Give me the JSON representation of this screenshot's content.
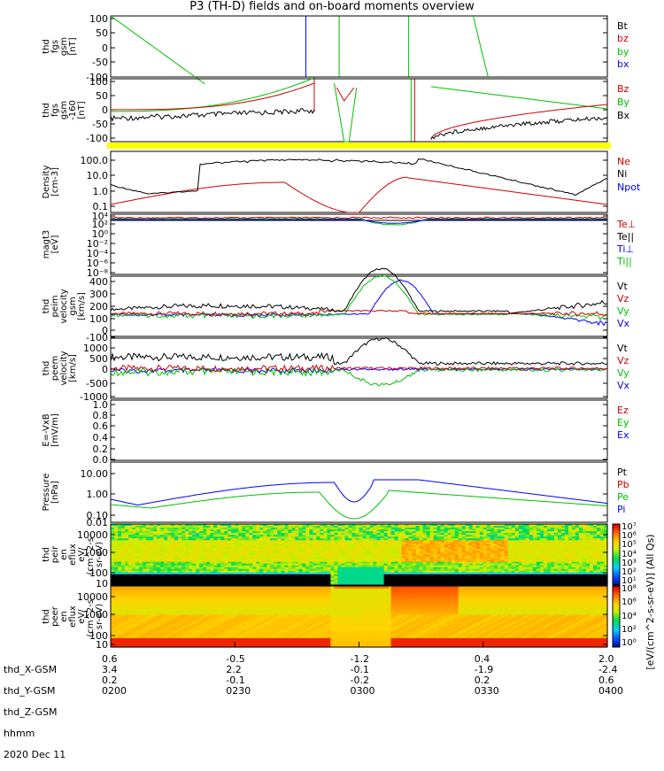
{
  "title": "P3 (TH-D) fields and on-board moments overview",
  "chart_data": [
    {
      "type": "line",
      "ylabel": "thd fgs gsm [nT]",
      "ylim": [
        -100,
        100
      ],
      "yticks": [
        "100",
        "50",
        "0",
        "-50",
        "-100"
      ],
      "series": [
        {
          "name": "Bt",
          "color": "#000000"
        },
        {
          "name": "bz",
          "color": "#d00000"
        },
        {
          "name": "by",
          "color": "#00c000"
        },
        {
          "name": "bx",
          "color": "#0000ff"
        }
      ]
    },
    {
      "type": "line",
      "ylabel": "thd fgs gsm -160 [nT]",
      "ylim": [
        -120,
        120
      ],
      "yticks": [
        "100",
        "50",
        "0",
        "-50",
        "-100"
      ],
      "series": [
        {
          "name": "Bz",
          "color": "#d00000"
        },
        {
          "name": "By",
          "color": "#00c000"
        },
        {
          "name": "Bx",
          "color": "#000000"
        }
      ]
    },
    {
      "type": "line",
      "ylabel": "Density [cm-3]",
      "scale": "log",
      "ylim": [
        0.1,
        200
      ],
      "yticks": [
        "100.0",
        "10.0",
        "1.0",
        "0.1"
      ],
      "series": [
        {
          "name": "Ne",
          "color": "#d00000"
        },
        {
          "name": "Ni",
          "color": "#000000"
        },
        {
          "name": "Npot",
          "color": "#0000ff"
        }
      ]
    },
    {
      "type": "line",
      "ylabel": "magt3 [eV]",
      "scale": "log",
      "yticks": [
        "10⁴",
        "10²",
        "10⁰",
        "10⁻²",
        "10⁻⁴",
        "10⁻⁶",
        "10⁻⁸"
      ],
      "series": [
        {
          "name": "Te⊥",
          "color": "#d00000"
        },
        {
          "name": "Te||",
          "color": "#000000"
        },
        {
          "name": "Ti⊥",
          "color": "#0000ff"
        },
        {
          "name": "Ti||",
          "color": "#00c000"
        }
      ]
    },
    {
      "type": "line",
      "ylabel": "thd peim velocity gsm [km/s]",
      "ylim": [
        -100,
        400
      ],
      "yticks": [
        "400",
        "300",
        "200",
        "100",
        "0",
        "-100"
      ],
      "series": [
        {
          "name": "Vt",
          "color": "#000000"
        },
        {
          "name": "Vz",
          "color": "#d00000"
        },
        {
          "name": "Vy",
          "color": "#00c000"
        },
        {
          "name": "Vx",
          "color": "#0000ff"
        }
      ]
    },
    {
      "type": "line",
      "ylabel": "thd peem velocity [km/s]",
      "ylim": [
        -1000,
        1000
      ],
      "yticks": [
        "1000",
        "500",
        "0",
        "-500",
        "-1000"
      ],
      "series": [
        {
          "name": "Vt",
          "color": "#000000"
        },
        {
          "name": "Vz",
          "color": "#d00000"
        },
        {
          "name": "Vy",
          "color": "#00c000"
        },
        {
          "name": "Vx",
          "color": "#0000ff"
        }
      ]
    },
    {
      "type": "line",
      "ylabel": "E=-VxB [mV/m]",
      "ylim": [
        0,
        1
      ],
      "yticks": [
        "1.0",
        "0.8",
        "0.6",
        "0.4",
        "0.2",
        "0.0"
      ],
      "series": [
        {
          "name": "Ez",
          "color": "#d00000"
        },
        {
          "name": "Ey",
          "color": "#00c000"
        },
        {
          "name": "Ex",
          "color": "#0000ff"
        }
      ]
    },
    {
      "type": "line",
      "ylabel": "Pressure [nPa]",
      "scale": "log",
      "ylim": [
        0.005,
        20
      ],
      "yticks": [
        "10.00",
        "1.00",
        "0.10",
        "0.01"
      ],
      "series": [
        {
          "name": "Pt",
          "color": "#000000"
        },
        {
          "name": "Pb",
          "color": "#d00000"
        },
        {
          "name": "Pe",
          "color": "#00c000"
        },
        {
          "name": "Pi",
          "color": "#0000ff"
        }
      ]
    },
    {
      "type": "heatmap",
      "ylabel": "thd peir en eflux eV/(cm^2-s-sr-eV)",
      "scale": "log",
      "yticks": [
        "10000",
        "1000",
        "100",
        "10"
      ],
      "colorbar": {
        "label": "[eV/(cm^2-s-sr-eV)] (All Qs)",
        "ticks": [
          "10⁷",
          "10⁶",
          "10⁵",
          "10⁴",
          "10³",
          "10²",
          "10¹"
        ]
      }
    },
    {
      "type": "heatmap",
      "ylabel": "thd peer en eflux eV/(cm^2-s-sr-eV)",
      "scale": "log",
      "yticks": [
        "10000",
        "1000",
        "100",
        "10"
      ],
      "colorbar": {
        "label": "[eV/(cm^2-s-sr-eV)] (All Qs)",
        "ticks": [
          "10⁸",
          "10⁶",
          "10⁴",
          "10²",
          "10⁰"
        ]
      }
    }
  ],
  "ephemeris": {
    "labels": [
      "thd_X-GSM",
      "thd_Y-GSM",
      "thd_Z-GSM",
      "hhmm",
      "2020 Dec 11"
    ],
    "columns": [
      {
        "x": "0.6",
        "y": "3.4",
        "z": "0.2",
        "t": "0200"
      },
      {
        "x": "-0.5",
        "y": "2.2",
        "z": "-0.1",
        "t": "0230"
      },
      {
        "x": "-1.2",
        "y": "-0.1",
        "z": "-0.2",
        "t": "0300"
      },
      {
        "x": "0.4",
        "y": "-1.9",
        "z": "0.2",
        "t": "0330"
      },
      {
        "x": "2.0",
        "y": "-2.4",
        "z": "0.6",
        "t": "0400"
      }
    ]
  }
}
